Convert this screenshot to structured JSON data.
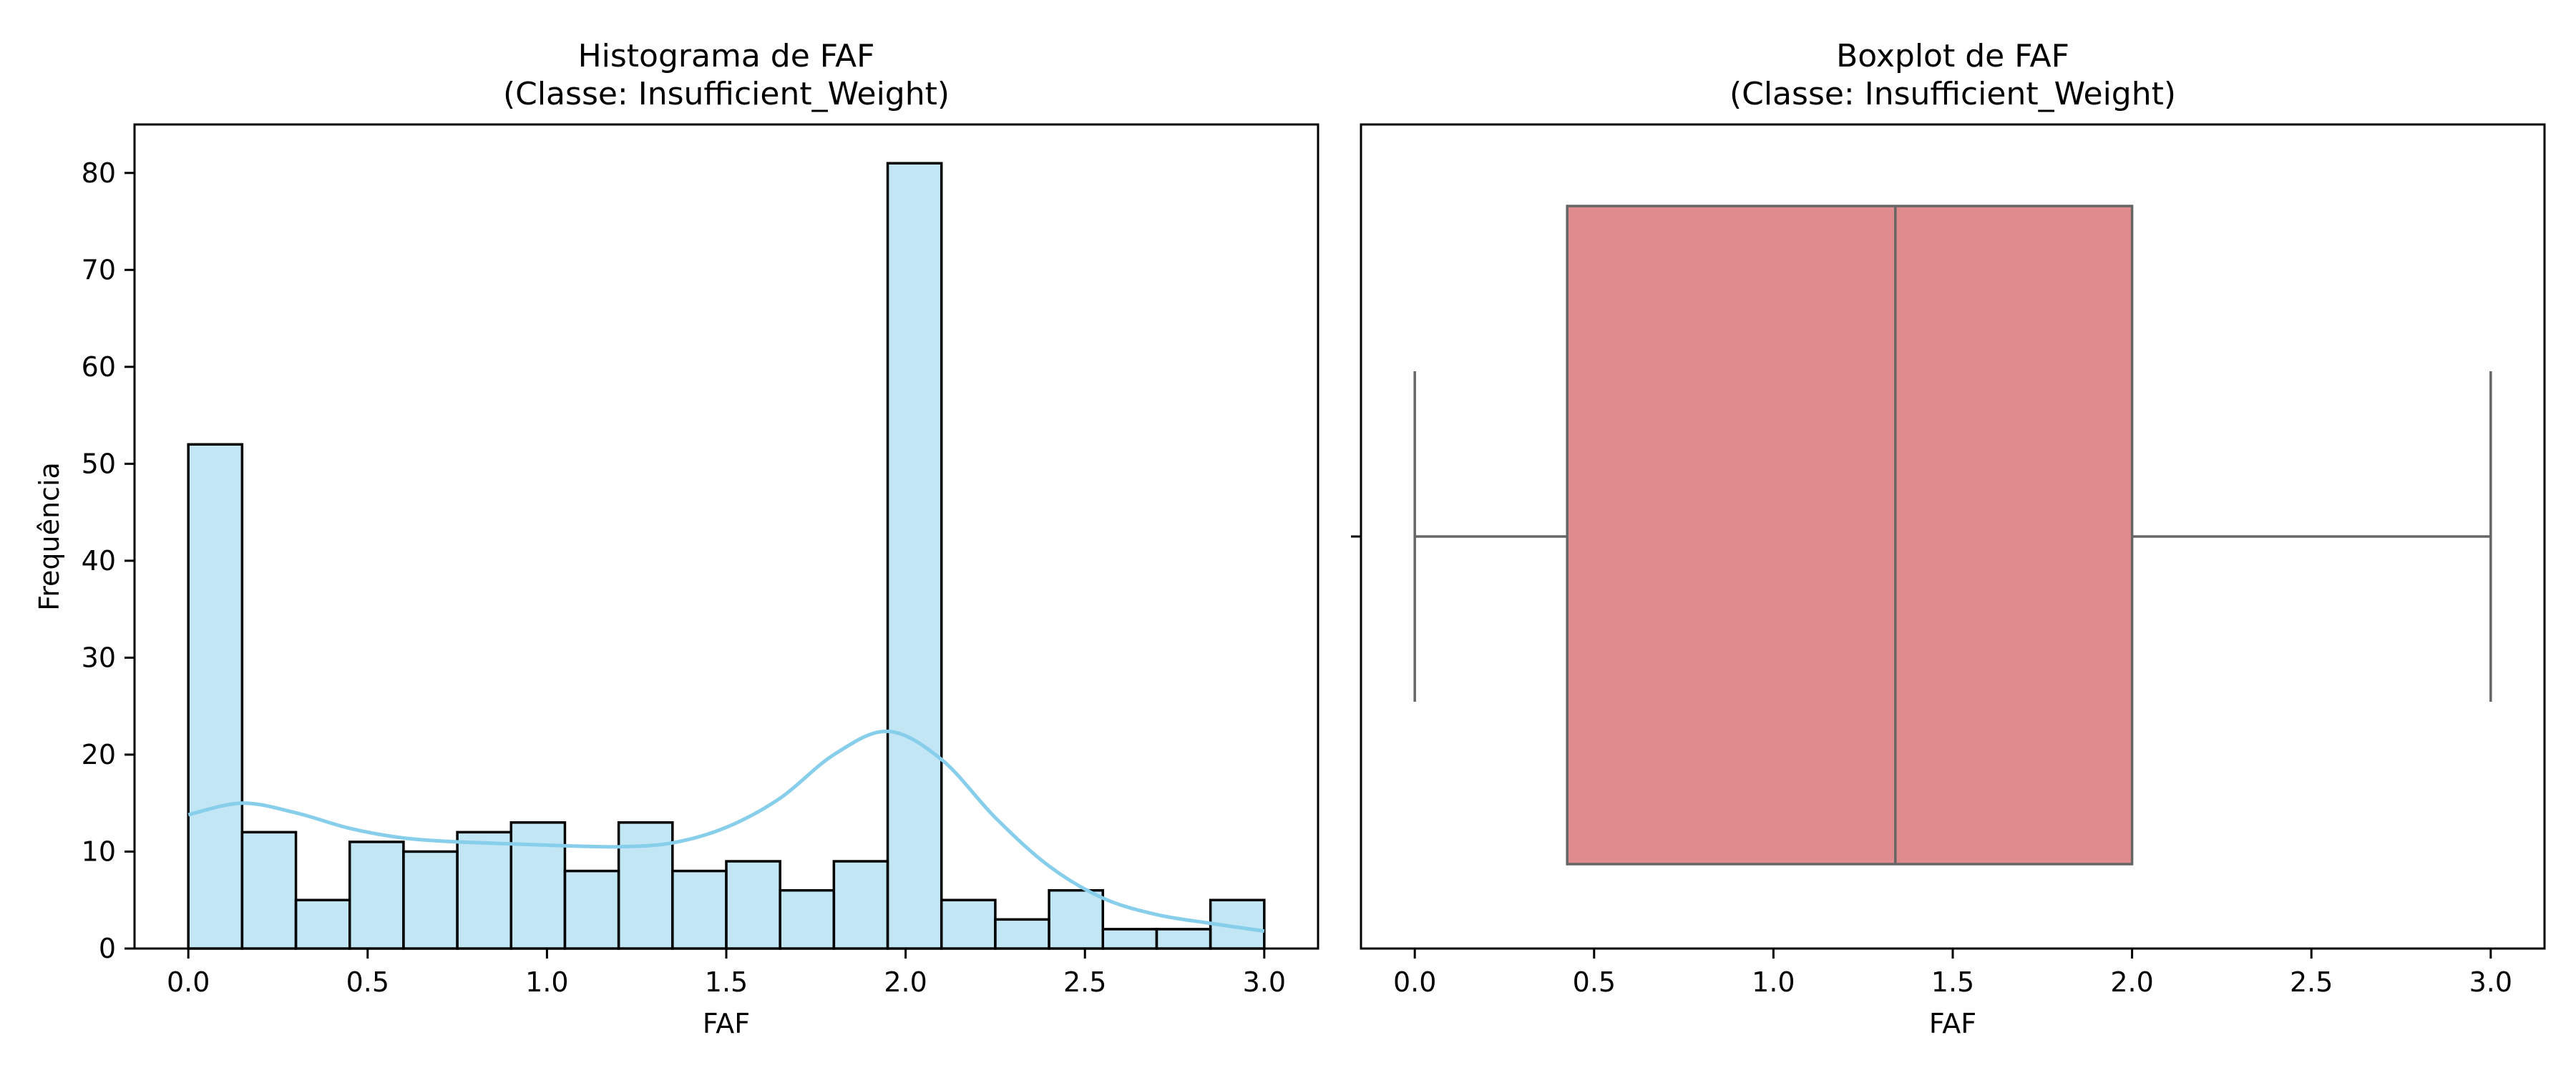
{
  "colors": {
    "hist_fill": "#87ceeb",
    "hist_edge": "#000000",
    "kde_line": "#87ceeb",
    "box_fill": "#e08c8e",
    "box_line": "#666666"
  },
  "chart_data": [
    {
      "type": "bar",
      "subtype": "histogram",
      "title": "Histograma de FAF\n(Classe: Insufficient_Weight)",
      "title_lines": [
        "Histograma de FAF",
        "(Classe: Insufficient_Weight)"
      ],
      "xlabel": "FAF",
      "ylabel": "Frequência",
      "xlim": [
        -0.15,
        3.15
      ],
      "ylim": [
        0,
        85
      ],
      "xticks": [
        0.0,
        0.5,
        1.0,
        1.5,
        2.0,
        2.5,
        3.0
      ],
      "xtick_labels": [
        "0.0",
        "0.5",
        "1.0",
        "1.5",
        "2.0",
        "2.5",
        "3.0"
      ],
      "yticks": [
        0,
        10,
        20,
        30,
        40,
        50,
        60,
        70,
        80
      ],
      "ytick_labels": [
        "0",
        "10",
        "20",
        "30",
        "40",
        "50",
        "60",
        "70",
        "80"
      ],
      "bin_start": 0.0,
      "bin_width": 0.15,
      "values": [
        52,
        12,
        5,
        11,
        10,
        12,
        13,
        8,
        13,
        8,
        9,
        6,
        9,
        81,
        5,
        3,
        6,
        2,
        2,
        5
      ],
      "kde": {
        "x": [
          0.0,
          0.15,
          0.3,
          0.45,
          0.6,
          0.75,
          0.9,
          1.05,
          1.2,
          1.35,
          1.5,
          1.65,
          1.8,
          1.95,
          2.1,
          2.25,
          2.4,
          2.55,
          2.7,
          2.85,
          3.0
        ],
        "y": [
          13.8,
          15.0,
          14.0,
          12.4,
          11.4,
          11.0,
          10.8,
          10.6,
          10.5,
          10.9,
          12.5,
          15.5,
          20.0,
          22.4,
          19.5,
          13.5,
          8.5,
          5.2,
          3.5,
          2.6,
          1.8
        ]
      },
      "grid": false
    },
    {
      "type": "box",
      "title": "Boxplot de FAF\n(Classe: Insufficient_Weight)",
      "title_lines": [
        "Boxplot de FAF",
        "(Classe: Insufficient_Weight)"
      ],
      "xlabel": "FAF",
      "xlim": [
        -0.15,
        3.15
      ],
      "xticks": [
        0.0,
        0.5,
        1.0,
        1.5,
        2.0,
        2.5,
        3.0
      ],
      "xtick_labels": [
        "0.0",
        "0.5",
        "1.0",
        "1.5",
        "2.0",
        "2.5",
        "3.0"
      ],
      "min": 0.0,
      "q1": 0.425,
      "median": 1.34,
      "q3": 2.0,
      "max": 3.0,
      "grid": false
    }
  ]
}
